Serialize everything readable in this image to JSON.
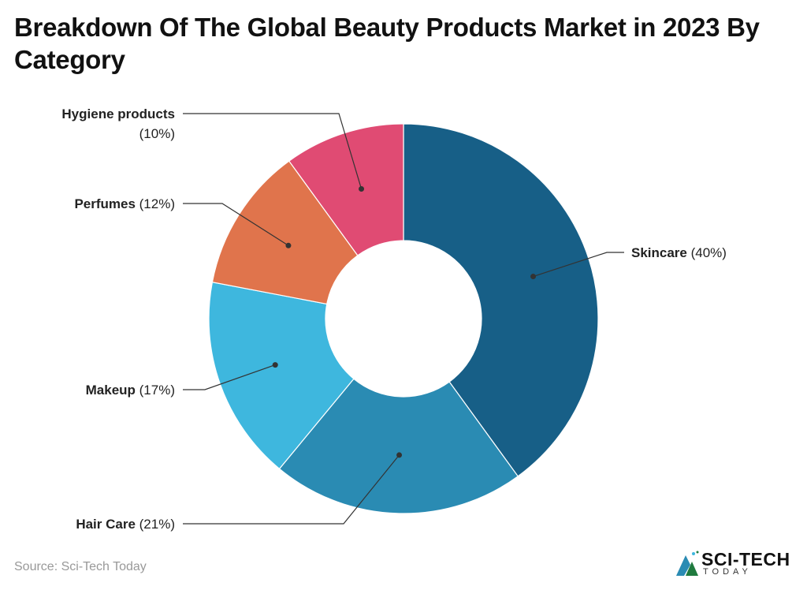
{
  "chart_data": {
    "type": "pie",
    "donut": true,
    "title": "Breakdown Of The Global Beauty Products Market in 2023 By Category",
    "unit": "%",
    "categories": [
      "Skincare",
      "Hair Care",
      "Makeup",
      "Perfumes",
      "Hygiene products"
    ],
    "values": [
      40,
      21,
      17,
      12,
      10
    ],
    "labels": [
      "(40%)",
      "(21%)",
      "(17%)",
      "(12%)",
      "(10%)"
    ],
    "colors": [
      "#175f87",
      "#2a8bb3",
      "#3eb7de",
      "#e0744c",
      "#e04b73"
    ],
    "start_angle": "12 o'clock",
    "direction": "clockwise"
  },
  "footer": {
    "source": "Source: Sci-Tech Today",
    "logo_text": "SCI-TECH",
    "logo_sub": "TODAY"
  }
}
